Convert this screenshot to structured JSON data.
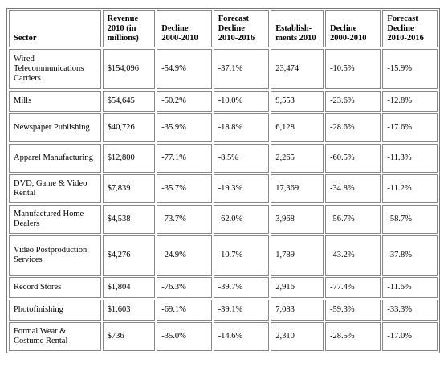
{
  "headers": [
    "Sector",
    "Revenue 2010 (in millions)",
    "Decline 2000-2010",
    "Forecast Decline 2010-2016",
    "Establish-ments 2010",
    "Decline 2000-2010",
    "Forecast Decline 2010-2016"
  ],
  "rows": [
    [
      "Wired Telecommunications Carriers",
      "$154,096",
      "-54.9%",
      "-37.1%",
      "23,474",
      "-10.5%",
      "-15.9%"
    ],
    [
      "Mills",
      "$54,645",
      "-50.2%",
      "-10.0%",
      "9,553",
      "-23.6%",
      "-12.8%"
    ],
    [
      "Newspaper Publishing",
      "$40,726",
      "-35.9%",
      "-18.8%",
      "6,128",
      "-28.6%",
      "-17.6%"
    ],
    [
      "Apparel Manufacturing",
      "$12,800",
      "-77.1%",
      "-8.5%",
      "2,265",
      "-60.5%",
      "-11.3%"
    ],
    [
      "DVD, Game & Video Rental",
      "$7,839",
      "-35.7%",
      "-19.3%",
      "17,369",
      "-34.8%",
      "-11.2%"
    ],
    [
      "Manufactured Home Dealers",
      "$4,538",
      "-73.7%",
      "-62.0%",
      "3,968",
      "-56.7%",
      "-58.7%"
    ],
    [
      "Video Postproduction Services",
      "$4,276",
      "-24.9%",
      "-10.7%",
      "1,789",
      "-43.2%",
      "-37.8%"
    ],
    [
      "Record Stores",
      "$1,804",
      "-76.3%",
      "-39.7%",
      "2,916",
      "-77.4%",
      "-11.6%"
    ],
    [
      "Photofinishing",
      "$1,603",
      "-69.1%",
      "-39.1%",
      "7,083",
      "-59.3%",
      "-33.3%"
    ],
    [
      "Formal Wear & Costume Rental",
      "$736",
      "-35.0%",
      "-14.6%",
      "2,310",
      "-28.5%",
      "-17.0%"
    ]
  ]
}
